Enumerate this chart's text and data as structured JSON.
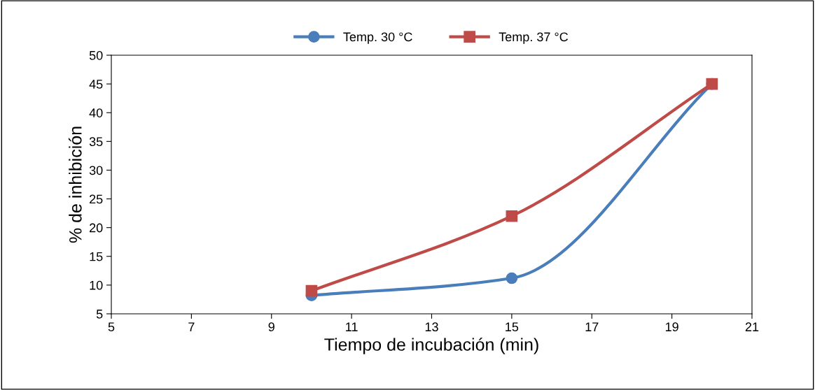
{
  "chart_data": {
    "type": "line",
    "xlabel": "Tiempo de incubación (min)",
    "ylabel": "% de inhibición",
    "xlim": [
      5,
      21
    ],
    "xticks": [
      5,
      7,
      9,
      11,
      13,
      15,
      17,
      19,
      21
    ],
    "ylim": [
      5,
      50
    ],
    "yticks": [
      5,
      10,
      15,
      20,
      25,
      30,
      35,
      40,
      45,
      50
    ],
    "x": [
      10,
      15,
      20
    ],
    "series": [
      {
        "name": "Temp. 30 °C",
        "color": "#4a7ebb",
        "marker": "circle",
        "values": [
          8.2,
          11.2,
          45
        ]
      },
      {
        "name": "Temp. 37 °C",
        "color": "#be4b48",
        "marker": "square",
        "values": [
          9,
          22,
          45
        ]
      }
    ],
    "legend": "top",
    "grid": false,
    "line_style": "solid"
  }
}
